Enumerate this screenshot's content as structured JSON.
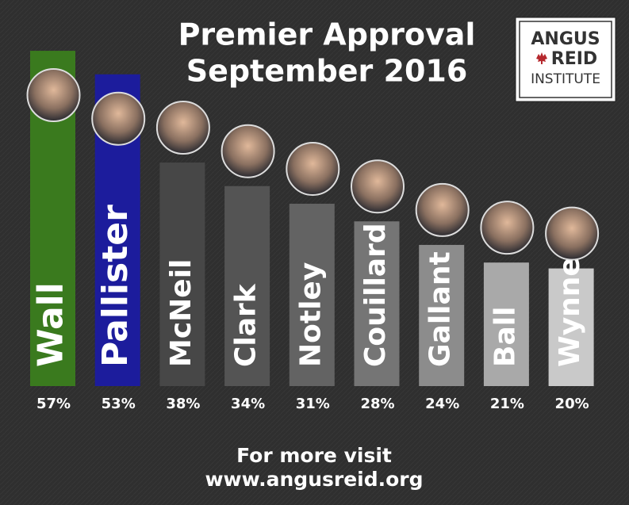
{
  "chart_data": {
    "type": "bar",
    "title": "Premier Approval",
    "subtitle": "September 2016",
    "categories": [
      "Wall",
      "Pallister",
      "McNeil",
      "Clark",
      "Notley",
      "Couillard",
      "Gallant",
      "Ball",
      "Wynne"
    ],
    "values": [
      57,
      53,
      38,
      34,
      31,
      28,
      24,
      21,
      20
    ],
    "value_labels": [
      "57%",
      "53%",
      "38%",
      "34%",
      "31%",
      "28%",
      "24%",
      "21%",
      "20%"
    ],
    "colors": [
      "#3a7a1e",
      "#1c1c9c",
      "#474747",
      "#545454",
      "#636363",
      "#757575",
      "#8c8c8c",
      "#a9a9a9",
      "#c9c9c9"
    ],
    "footer": [
      "For more visit",
      "www.angusreid.org"
    ]
  },
  "logo": {
    "lines": [
      "ANGUS",
      "REID",
      "INSTITUTE"
    ]
  }
}
